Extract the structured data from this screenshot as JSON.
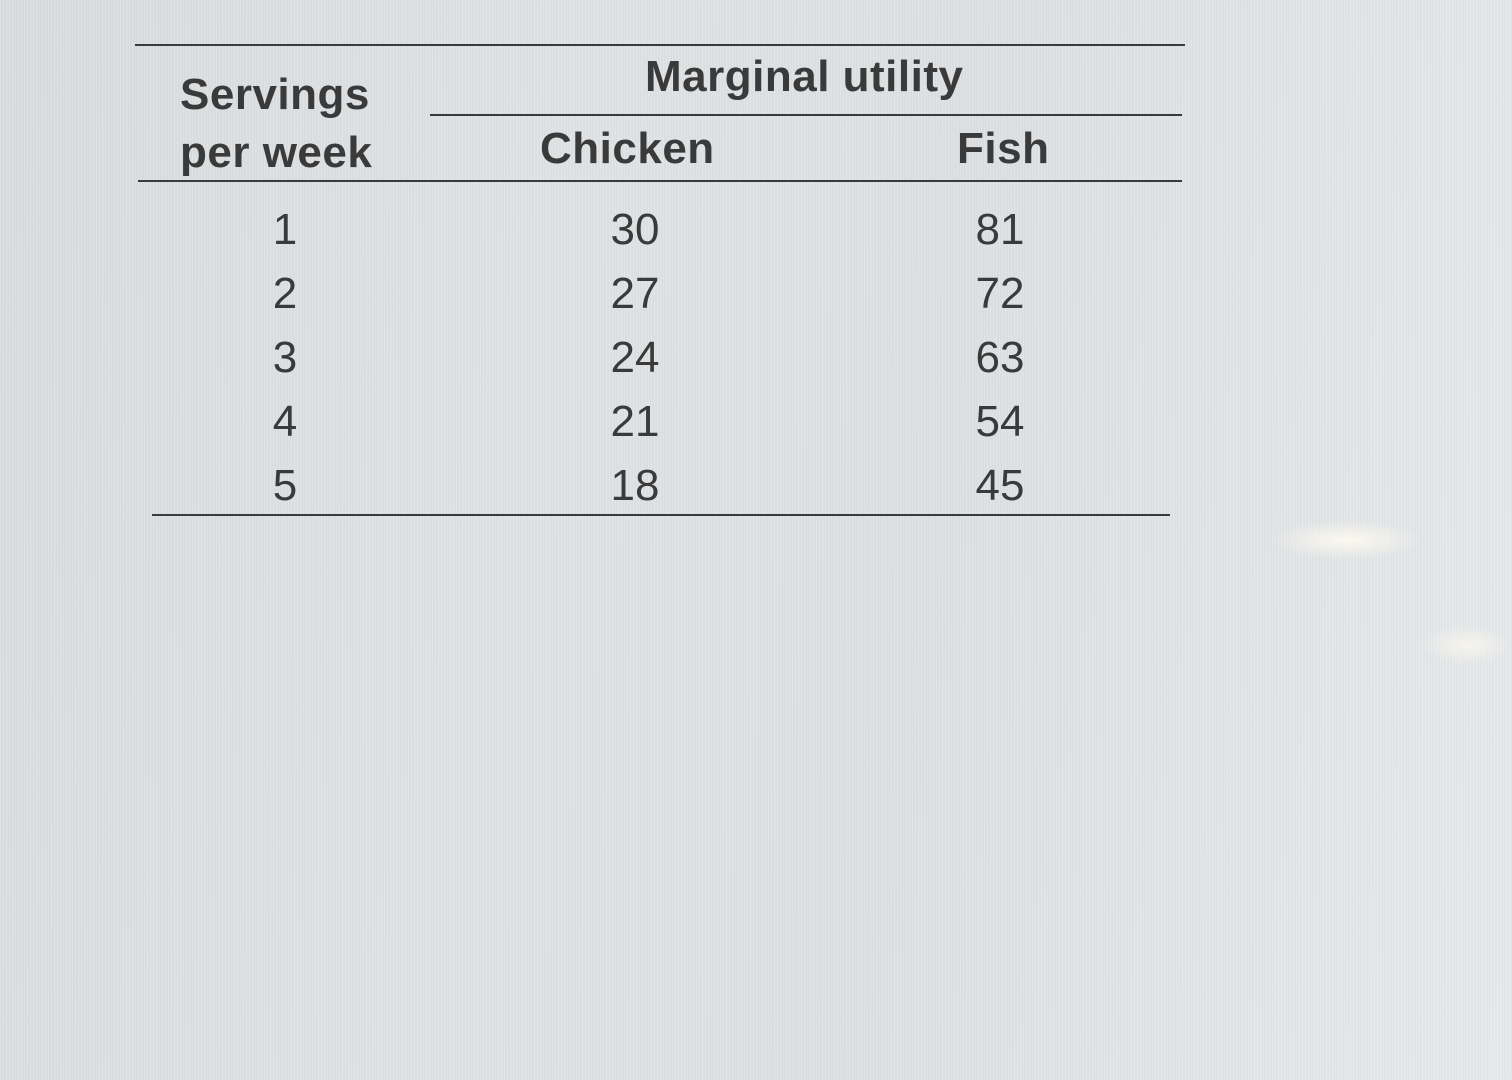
{
  "table": {
    "header": {
      "servings_line1": "Servings",
      "servings_line2": "per week",
      "group": "Marginal utility",
      "chicken": "Chicken",
      "fish": "Fish"
    },
    "rows": [
      {
        "servings": "1",
        "chicken": "30",
        "fish": "81"
      },
      {
        "servings": "2",
        "chicken": "27",
        "fish": "72"
      },
      {
        "servings": "3",
        "chicken": "24",
        "fish": "63"
      },
      {
        "servings": "4",
        "chicken": "21",
        "fish": "54"
      },
      {
        "servings": "5",
        "chicken": "18",
        "fish": "45"
      }
    ]
  }
}
